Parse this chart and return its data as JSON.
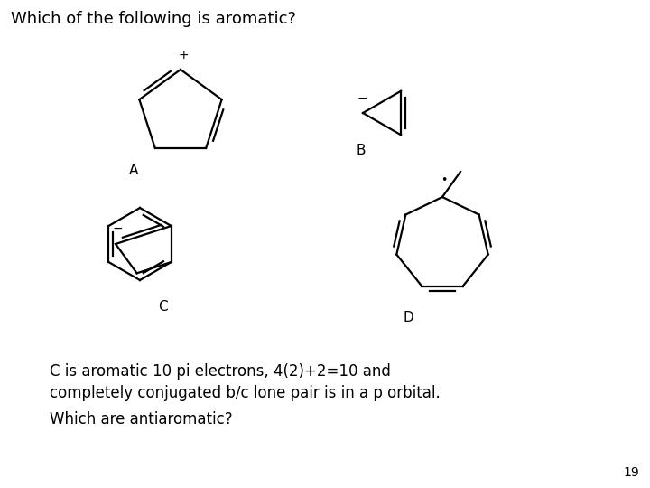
{
  "title": "Which of the following is aromatic?",
  "bg_color": "#ffffff",
  "answer_line1": "C is aromatic 10 pi electrons, 4(2)+2=10 and",
  "answer_line2": "completely conjugated b/c lone pair is in a p orbital.",
  "answer_line3": "Which are antiaromatic?",
  "page_number": "19",
  "label_A": "A",
  "label_B": "B",
  "label_C": "C",
  "label_D": "D",
  "charge_A": "+",
  "charge_B": "−",
  "charge_C": "−",
  "charge_D": "•"
}
